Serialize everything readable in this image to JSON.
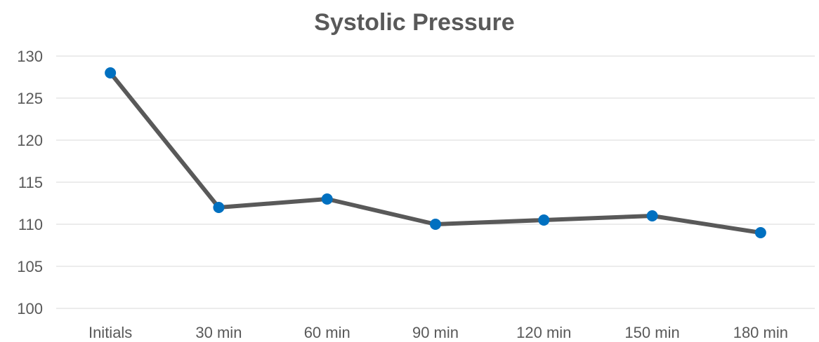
{
  "chart_data": {
    "type": "line",
    "title": "Systolic Pressure",
    "xlabel": "",
    "ylabel": "",
    "categories": [
      "Initials",
      "30 min",
      "60 min",
      "90 min",
      "120 min",
      "150 min",
      "180 min"
    ],
    "series": [
      {
        "values": [
          128,
          112,
          113,
          110,
          110.5,
          111,
          109
        ]
      }
    ],
    "ylim": [
      100,
      130
    ],
    "yticks": [
      100,
      105,
      110,
      115,
      120,
      125,
      130
    ],
    "grid": true,
    "legend": "none",
    "colors": {
      "line": "#595959",
      "marker": "#0070c0",
      "grid": "#d9d9d9",
      "text": "#595959"
    }
  }
}
